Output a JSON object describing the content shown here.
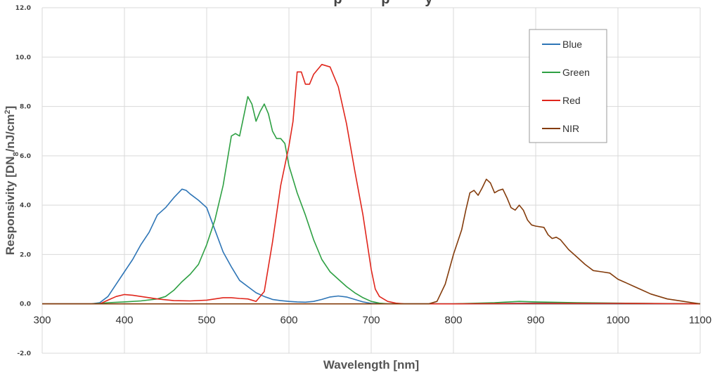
{
  "chart_data": {
    "type": "line",
    "title_fragment": "p          p         y",
    "xlabel": "Wavelength [nm]",
    "ylabel": "Responsivity [DN",
    "ylabel_sub": "8",
    "ylabel_rest": "/nJ/cm",
    "ylabel_sup": "2",
    "ylabel_end": "]",
    "xlim": [
      300,
      1100
    ],
    "ylim": [
      -2.0,
      12.0
    ],
    "x_ticks": [
      300,
      400,
      500,
      600,
      700,
      800,
      900,
      1000,
      1100
    ],
    "x_tick_labels": [
      "300",
      "400",
      "500",
      "600",
      "700",
      "800",
      "900",
      "1000",
      "1100"
    ],
    "y_ticks": [
      -2,
      0,
      2,
      4,
      6,
      8,
      10,
      12
    ],
    "y_tick_labels": [
      "-2.0",
      "0.0",
      "2.0",
      "4.0",
      "6.0",
      "8.0",
      "10.0",
      "12.0"
    ],
    "grid": true,
    "legend_position": "top-right",
    "series": [
      {
        "name": "Blue",
        "color": "#2e75b6",
        "points": [
          [
            300,
            0
          ],
          [
            360,
            0
          ],
          [
            370,
            0.05
          ],
          [
            380,
            0.3
          ],
          [
            390,
            0.8
          ],
          [
            400,
            1.3
          ],
          [
            410,
            1.8
          ],
          [
            420,
            2.4
          ],
          [
            430,
            2.9
          ],
          [
            440,
            3.6
          ],
          [
            450,
            3.9
          ],
          [
            460,
            4.3
          ],
          [
            470,
            4.65
          ],
          [
            475,
            4.6
          ],
          [
            480,
            4.45
          ],
          [
            490,
            4.2
          ],
          [
            500,
            3.9
          ],
          [
            510,
            3.0
          ],
          [
            520,
            2.1
          ],
          [
            530,
            1.5
          ],
          [
            540,
            0.95
          ],
          [
            550,
            0.7
          ],
          [
            560,
            0.45
          ],
          [
            570,
            0.3
          ],
          [
            580,
            0.18
          ],
          [
            590,
            0.13
          ],
          [
            600,
            0.1
          ],
          [
            610,
            0.08
          ],
          [
            620,
            0.07
          ],
          [
            630,
            0.1
          ],
          [
            640,
            0.18
          ],
          [
            650,
            0.28
          ],
          [
            660,
            0.32
          ],
          [
            670,
            0.28
          ],
          [
            680,
            0.18
          ],
          [
            690,
            0.08
          ],
          [
            700,
            0.02
          ],
          [
            720,
            0
          ],
          [
            800,
            0
          ],
          [
            900,
            0.03
          ],
          [
            1000,
            0.02
          ],
          [
            1100,
            0
          ]
        ]
      },
      {
        "name": "Green",
        "color": "#2ea043",
        "points": [
          [
            300,
            0
          ],
          [
            360,
            0
          ],
          [
            370,
            0.02
          ],
          [
            380,
            0.05
          ],
          [
            400,
            0.08
          ],
          [
            420,
            0.12
          ],
          [
            440,
            0.2
          ],
          [
            450,
            0.3
          ],
          [
            460,
            0.55
          ],
          [
            470,
            0.9
          ],
          [
            480,
            1.2
          ],
          [
            490,
            1.6
          ],
          [
            500,
            2.4
          ],
          [
            510,
            3.4
          ],
          [
            520,
            4.8
          ],
          [
            530,
            6.8
          ],
          [
            535,
            6.9
          ],
          [
            540,
            6.8
          ],
          [
            545,
            7.6
          ],
          [
            550,
            8.4
          ],
          [
            555,
            8.1
          ],
          [
            560,
            7.4
          ],
          [
            565,
            7.8
          ],
          [
            570,
            8.1
          ],
          [
            575,
            7.7
          ],
          [
            580,
            7.0
          ],
          [
            585,
            6.7
          ],
          [
            590,
            6.7
          ],
          [
            595,
            6.5
          ],
          [
            600,
            5.6
          ],
          [
            610,
            4.5
          ],
          [
            620,
            3.6
          ],
          [
            630,
            2.6
          ],
          [
            640,
            1.8
          ],
          [
            650,
            1.3
          ],
          [
            660,
            1.0
          ],
          [
            670,
            0.7
          ],
          [
            680,
            0.45
          ],
          [
            690,
            0.25
          ],
          [
            700,
            0.1
          ],
          [
            710,
            0.03
          ],
          [
            720,
            0
          ],
          [
            800,
            0
          ],
          [
            850,
            0.05
          ],
          [
            880,
            0.1
          ],
          [
            900,
            0.08
          ],
          [
            950,
            0.05
          ],
          [
            1000,
            0.03
          ],
          [
            1100,
            0
          ]
        ]
      },
      {
        "name": "Red",
        "color": "#e0261c",
        "points": [
          [
            300,
            0
          ],
          [
            370,
            0
          ],
          [
            380,
            0.15
          ],
          [
            390,
            0.3
          ],
          [
            400,
            0.38
          ],
          [
            410,
            0.35
          ],
          [
            420,
            0.3
          ],
          [
            440,
            0.2
          ],
          [
            460,
            0.13
          ],
          [
            480,
            0.12
          ],
          [
            500,
            0.15
          ],
          [
            510,
            0.2
          ],
          [
            520,
            0.25
          ],
          [
            530,
            0.25
          ],
          [
            540,
            0.22
          ],
          [
            550,
            0.2
          ],
          [
            560,
            0.1
          ],
          [
            570,
            0.5
          ],
          [
            580,
            2.5
          ],
          [
            590,
            4.8
          ],
          [
            600,
            6.4
          ],
          [
            605,
            7.4
          ],
          [
            610,
            9.4
          ],
          [
            615,
            9.4
          ],
          [
            620,
            8.9
          ],
          [
            625,
            8.9
          ],
          [
            630,
            9.3
          ],
          [
            640,
            9.7
          ],
          [
            650,
            9.6
          ],
          [
            660,
            8.8
          ],
          [
            670,
            7.3
          ],
          [
            680,
            5.4
          ],
          [
            690,
            3.6
          ],
          [
            700,
            1.4
          ],
          [
            705,
            0.6
          ],
          [
            710,
            0.3
          ],
          [
            720,
            0.1
          ],
          [
            730,
            0.03
          ],
          [
            740,
            0
          ],
          [
            800,
            0
          ],
          [
            900,
            0.02
          ],
          [
            1000,
            0.02
          ],
          [
            1100,
            0
          ]
        ]
      },
      {
        "name": "NIR",
        "color": "#843c0c",
        "points": [
          [
            300,
            0
          ],
          [
            700,
            0
          ],
          [
            770,
            0
          ],
          [
            780,
            0.1
          ],
          [
            790,
            0.8
          ],
          [
            800,
            2.0
          ],
          [
            810,
            3.0
          ],
          [
            815,
            3.8
          ],
          [
            820,
            4.5
          ],
          [
            825,
            4.6
          ],
          [
            830,
            4.4
          ],
          [
            835,
            4.7
          ],
          [
            840,
            5.05
          ],
          [
            845,
            4.9
          ],
          [
            850,
            4.5
          ],
          [
            855,
            4.6
          ],
          [
            860,
            4.65
          ],
          [
            865,
            4.3
          ],
          [
            870,
            3.9
          ],
          [
            875,
            3.8
          ],
          [
            880,
            4.0
          ],
          [
            885,
            3.8
          ],
          [
            890,
            3.4
          ],
          [
            895,
            3.2
          ],
          [
            900,
            3.15
          ],
          [
            910,
            3.1
          ],
          [
            915,
            2.8
          ],
          [
            920,
            2.65
          ],
          [
            925,
            2.7
          ],
          [
            930,
            2.6
          ],
          [
            940,
            2.2
          ],
          [
            950,
            1.9
          ],
          [
            960,
            1.6
          ],
          [
            970,
            1.35
          ],
          [
            980,
            1.3
          ],
          [
            990,
            1.25
          ],
          [
            1000,
            1.0
          ],
          [
            1010,
            0.85
          ],
          [
            1020,
            0.7
          ],
          [
            1030,
            0.55
          ],
          [
            1040,
            0.4
          ],
          [
            1050,
            0.3
          ],
          [
            1060,
            0.2
          ],
          [
            1070,
            0.15
          ],
          [
            1080,
            0.1
          ],
          [
            1090,
            0.05
          ],
          [
            1100,
            0
          ]
        ]
      }
    ]
  }
}
